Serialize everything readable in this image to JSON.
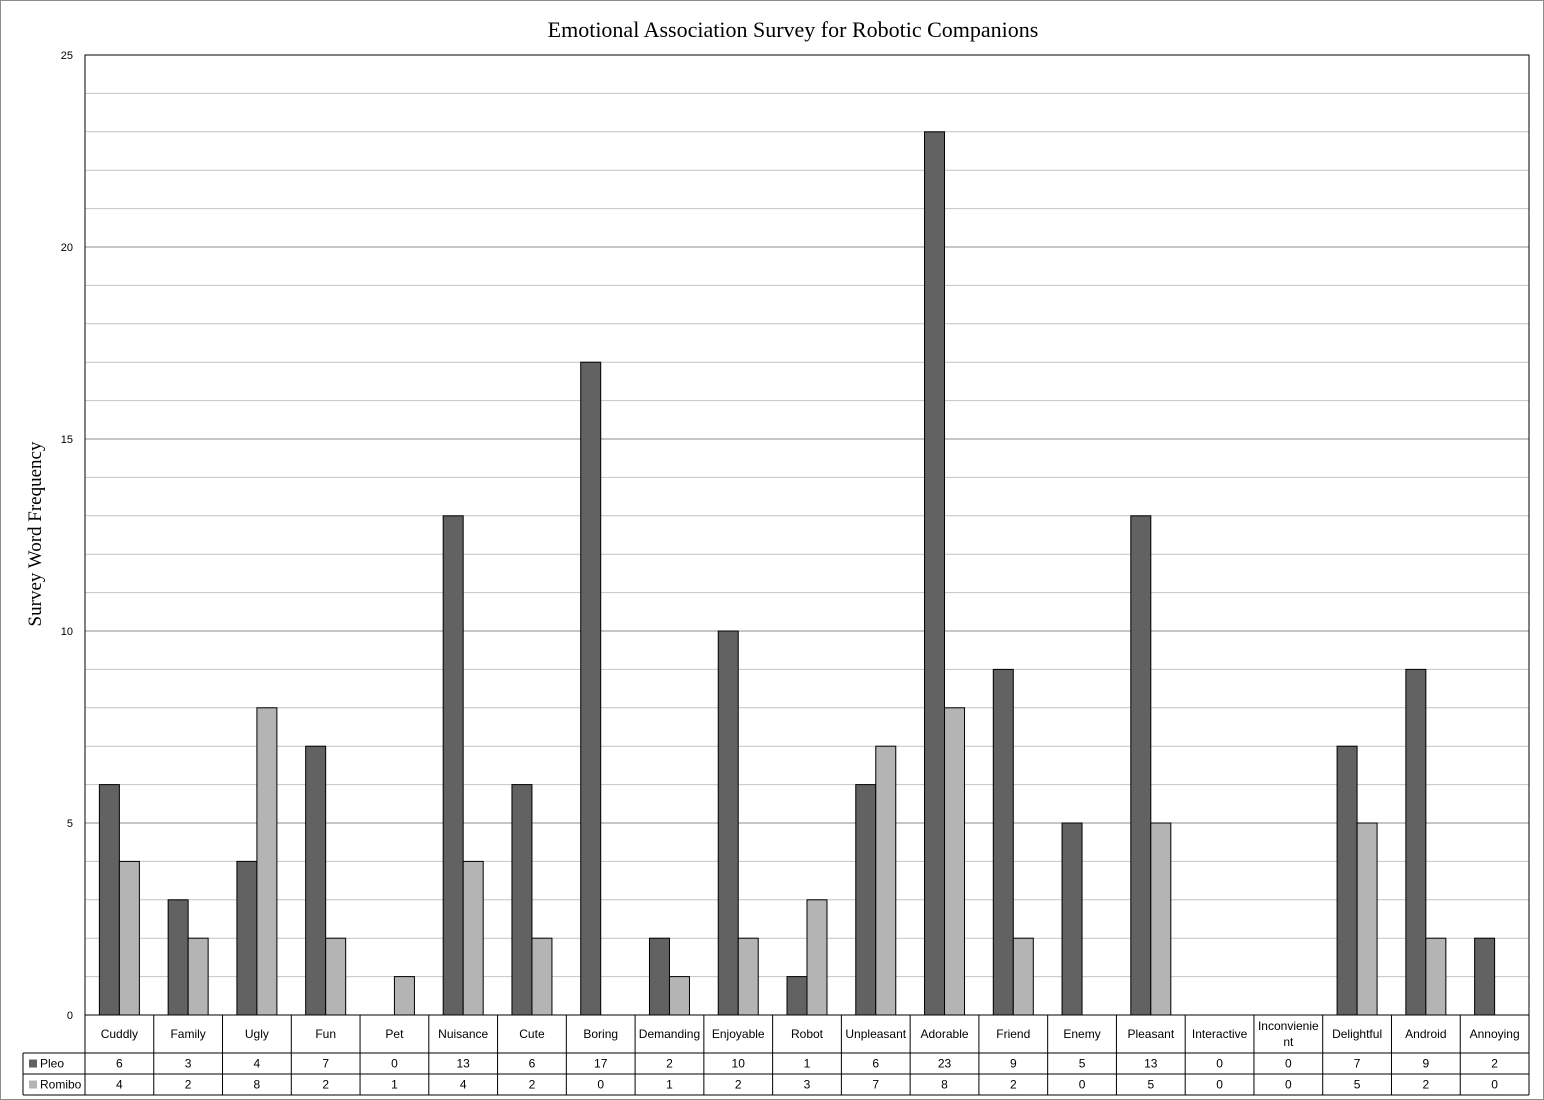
{
  "chart_data": {
    "type": "bar",
    "title": "Emotional Association Survey for Robotic Companions",
    "xlabel": "",
    "ylabel": "Survey Word  Frequency",
    "ylim": [
      0,
      25
    ],
    "yticks": [
      0,
      5,
      10,
      15,
      20,
      25
    ],
    "grid": true,
    "legend": "data-table-left",
    "categories": [
      "Cuddly",
      "Family",
      "Ugly",
      "Fun",
      "Pet",
      "Nuisance",
      "Cute",
      "Boring",
      "Demanding",
      "Enjoyable",
      "Robot",
      "Unpleasant",
      "Adorable",
      "Friend",
      "Enemy",
      "Pleasant",
      "Interactive",
      "Inconvienient",
      "Delightful",
      "Android",
      "Annoying"
    ],
    "series": [
      {
        "name": "Pleo",
        "color": "#626262",
        "values": [
          6,
          3,
          4,
          7,
          0,
          13,
          6,
          17,
          2,
          10,
          1,
          6,
          23,
          9,
          5,
          13,
          0,
          0,
          7,
          9,
          2
        ]
      },
      {
        "name": "Romibo",
        "color": "#b4b4b4",
        "values": [
          4,
          2,
          8,
          2,
          1,
          4,
          2,
          0,
          1,
          2,
          3,
          7,
          8,
          2,
          0,
          5,
          0,
          0,
          5,
          2,
          0
        ]
      }
    ]
  }
}
